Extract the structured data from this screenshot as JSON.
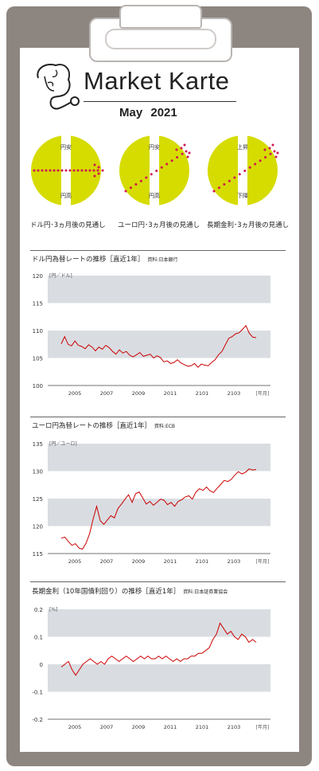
{
  "header": {
    "title": "Market Karte",
    "month": "May",
    "year": "2021"
  },
  "outlooks": [
    {
      "caption": "ドル円･3ヵ月後の見通し",
      "top_label": "円安",
      "bottom_label": "円高",
      "direction": "flat"
    },
    {
      "caption": "ユーロ円･3ヵ月後の見通し",
      "top_label": "円安",
      "bottom_label": "円高",
      "direction": "up"
    },
    {
      "caption": "長期金利･3ヵ月後の見通し",
      "top_label": "上昇",
      "bottom_label": "下降",
      "direction": "up"
    }
  ],
  "colors": {
    "disc": "#d6dc00",
    "dots": "#d0134f",
    "line": "#cc0000",
    "band": "#d9dde2"
  },
  "chart_data": [
    {
      "type": "line",
      "title": "ドル円為替レートの推移［直近1年］",
      "source": "資料:日本銀行",
      "unit_label": "[円／ドル]",
      "x_unit_label": "[年月]",
      "ylim": [
        100,
        120
      ],
      "yticks": [
        "120",
        "115",
        "110",
        "105",
        "100"
      ],
      "xticks": [
        "2005",
        "2007",
        "2009",
        "2011",
        "2101",
        "2103"
      ],
      "series": [
        {
          "values": [
            107.6,
            108.9,
            107.5,
            107.2,
            108.1,
            107.3,
            107.1,
            106.7,
            107.4,
            107.0,
            106.3,
            107.0,
            106.6,
            107.3,
            106.9,
            106.2,
            105.7,
            106.5,
            105.9,
            106.2,
            105.5,
            105.2,
            105.6,
            106.0,
            105.3,
            105.5,
            105.7,
            105.0,
            105.4,
            105.1,
            104.3,
            104.5,
            104.0,
            104.2,
            104.7,
            104.1,
            103.8,
            103.5,
            103.6,
            104.0,
            103.3,
            103.9,
            103.7,
            103.6,
            104.2,
            104.7,
            105.6,
            106.2,
            107.4,
            108.6,
            108.9,
            109.4,
            109.6,
            110.2,
            110.9,
            109.5,
            108.8,
            108.7
          ]
        }
      ]
    },
    {
      "type": "line",
      "title": "ユーロ円為替レートの推移［直近1年］",
      "source": "資料:ECB",
      "unit_label": "[円／ユーロ]",
      "x_unit_label": "[年月]",
      "ylim": [
        115,
        135
      ],
      "yticks": [
        "135",
        "130",
        "125",
        "120",
        "115"
      ],
      "xticks": [
        "2005",
        "2007",
        "2009",
        "2011",
        "2101",
        "2103"
      ],
      "series": [
        {
          "values": [
            117.8,
            118.0,
            117.2,
            116.5,
            116.8,
            116.0,
            115.8,
            116.9,
            118.6,
            121.3,
            123.6,
            121.0,
            120.3,
            121.1,
            121.9,
            121.5,
            123.2,
            124.0,
            124.9,
            125.7,
            124.3,
            125.9,
            126.2,
            125.1,
            124.0,
            124.5,
            123.8,
            124.3,
            124.9,
            124.7,
            123.9,
            124.3,
            123.6,
            124.5,
            124.8,
            125.3,
            125.5,
            124.9,
            126.2,
            126.8,
            126.5,
            127.1,
            126.4,
            126.1,
            126.9,
            127.6,
            128.3,
            128.1,
            128.5,
            129.3,
            129.9,
            129.5,
            129.8,
            130.4,
            130.2,
            130.3
          ]
        }
      ]
    },
    {
      "type": "line",
      "title": "長期金利（10年国債利回り）の推移［直近1年］",
      "source": "資料:日本証券業協会",
      "unit_label": "[%]",
      "x_unit_label": "[年月]",
      "ylim": [
        -0.2,
        0.2
      ],
      "yticks": [
        "0.2",
        "0.1",
        "0",
        "-0.1",
        "-0.2"
      ],
      "xticks": [
        "2005",
        "2007",
        "2009",
        "2011",
        "2101",
        "2103"
      ],
      "series": [
        {
          "values": [
            -0.01,
            0.0,
            0.01,
            -0.02,
            -0.04,
            -0.02,
            0.0,
            0.01,
            0.02,
            0.01,
            0.0,
            0.01,
            0.0,
            0.02,
            0.03,
            0.02,
            0.01,
            0.02,
            0.03,
            0.02,
            0.01,
            0.02,
            0.03,
            0.02,
            0.03,
            0.02,
            0.02,
            0.03,
            0.02,
            0.03,
            0.02,
            0.01,
            0.02,
            0.01,
            0.02,
            0.02,
            0.03,
            0.03,
            0.04,
            0.04,
            0.05,
            0.06,
            0.09,
            0.11,
            0.15,
            0.13,
            0.11,
            0.12,
            0.1,
            0.09,
            0.11,
            0.1,
            0.08,
            0.09,
            0.08
          ]
        }
      ]
    }
  ]
}
